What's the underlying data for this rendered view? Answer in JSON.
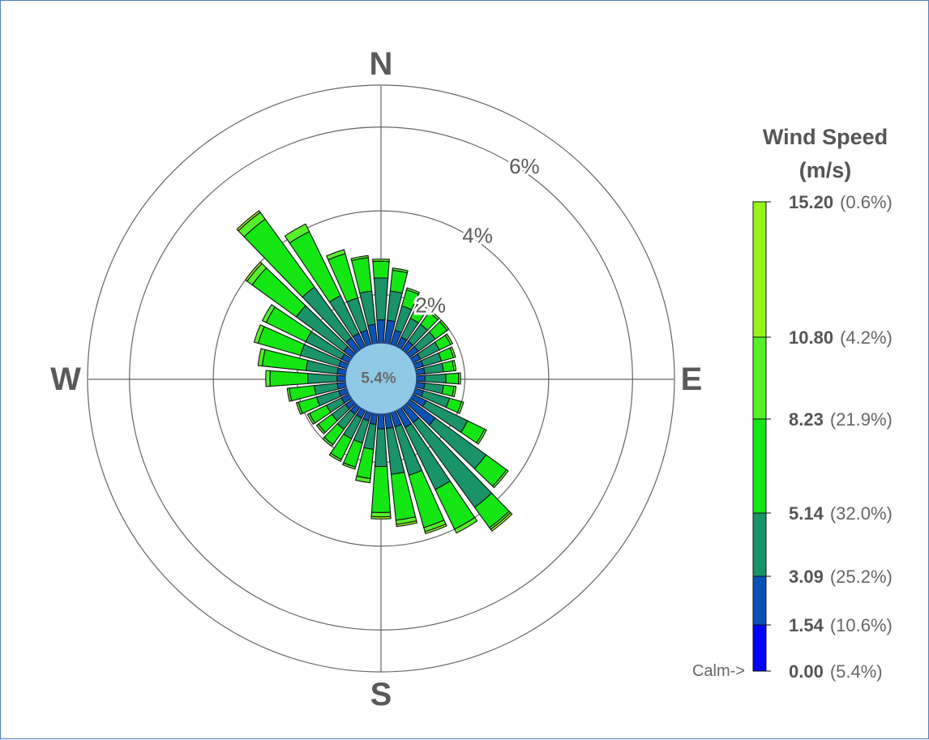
{
  "chart_data": {
    "type": "wind-rose",
    "calm_label": "5.4%",
    "compass": [
      "N",
      "E",
      "S",
      "W"
    ],
    "rings": [
      {
        "value": 2,
        "label": "2%"
      },
      {
        "value": 4,
        "label": "4%"
      },
      {
        "value": 6,
        "label": "6%"
      }
    ],
    "rmax": 7,
    "legend": {
      "title": [
        "Wind Speed",
        "(m/s)"
      ],
      "calm_marker": "Calm->",
      "bins": [
        {
          "value": "0.00",
          "pct": "(5.4%)",
          "color": "#0000ff"
        },
        {
          "value": "1.54",
          "pct": "(10.6%)",
          "color": "#0a52b6"
        },
        {
          "value": "3.09",
          "pct": "(25.2%)",
          "color": "#1a9368"
        },
        {
          "value": "5.14",
          "pct": "(32.0%)",
          "color": "#14e614"
        },
        {
          "value": "8.23",
          "pct": "(21.9%)",
          "color": "#56f02a"
        },
        {
          "value": "10.80",
          "pct": "(4.2%)",
          "color": "#98f31c"
        },
        {
          "value": "15.20",
          "pct": "(0.6%)",
          "color": "#c6f21a"
        }
      ]
    },
    "bin_colors": [
      "#0000ff",
      "#0a52b6",
      "#1a9368",
      "#14e614",
      "#56f02a",
      "#98f31c",
      "#c6f21a"
    ],
    "sectors": [
      {
        "dir": 0,
        "cum": [
          0.7,
          1.4,
          2.4,
          2.8,
          2.85,
          2.85
        ]
      },
      {
        "dir": 10,
        "cum": [
          0.7,
          1.4,
          2.1,
          2.6,
          2.65,
          2.65
        ]
      },
      {
        "dir": 20,
        "cum": [
          0.7,
          1.2,
          1.8,
          2.2,
          2.25,
          2.25
        ]
      },
      {
        "dir": 30,
        "cum": [
          0.7,
          1.1,
          1.6,
          1.95,
          2.0,
          2.0
        ]
      },
      {
        "dir": 40,
        "cum": [
          0.7,
          1.1,
          1.6,
          1.95,
          2.0,
          2.0
        ]
      },
      {
        "dir": 50,
        "cum": [
          0.7,
          1.1,
          1.6,
          1.95,
          2.0,
          2.0
        ]
      },
      {
        "dir": 60,
        "cum": [
          0.7,
          1.05,
          1.55,
          1.85,
          1.9,
          1.9
        ]
      },
      {
        "dir": 70,
        "cum": [
          0.7,
          1.05,
          1.5,
          1.8,
          1.85,
          1.85
        ]
      },
      {
        "dir": 80,
        "cum": [
          0.7,
          1.05,
          1.5,
          1.75,
          1.8,
          1.8
        ]
      },
      {
        "dir": 90,
        "cum": [
          0.7,
          1.05,
          1.55,
          1.85,
          1.9,
          1.9
        ]
      },
      {
        "dir": 100,
        "cum": [
          0.7,
          1.05,
          1.5,
          1.75,
          1.8,
          1.8
        ]
      },
      {
        "dir": 110,
        "cum": [
          0.7,
          1.05,
          1.7,
          2.0,
          2.05,
          2.05
        ]
      },
      {
        "dir": 120,
        "cum": [
          0.7,
          1.2,
          2.3,
          2.75,
          2.8,
          2.8
        ]
      },
      {
        "dir": 130,
        "cum": [
          0.7,
          1.6,
          3.1,
          3.7,
          3.75,
          3.75
        ]
      },
      {
        "dir": 140,
        "cum": [
          0.7,
          1.3,
          3.8,
          4.4,
          4.45,
          4.5
        ]
      },
      {
        "dir": 150,
        "cum": [
          0.7,
          1.3,
          2.95,
          4.0,
          4.1,
          4.1
        ]
      },
      {
        "dir": 160,
        "cum": [
          0.7,
          1.2,
          2.4,
          3.7,
          3.8,
          3.85
        ]
      },
      {
        "dir": 170,
        "cum": [
          0.7,
          1.2,
          2.3,
          3.4,
          3.5,
          3.55
        ]
      },
      {
        "dir": 180,
        "cum": [
          0.7,
          1.2,
          2.1,
          3.2,
          3.3,
          3.35
        ]
      },
      {
        "dir": 190,
        "cum": [
          0.7,
          1.1,
          1.7,
          2.4,
          2.5,
          2.5
        ]
      },
      {
        "dir": 200,
        "cum": [
          0.7,
          1.05,
          1.6,
          2.2,
          2.25,
          2.25
        ]
      },
      {
        "dir": 210,
        "cum": [
          0.7,
          1.05,
          1.6,
          2.15,
          2.2,
          2.2
        ]
      },
      {
        "dir": 220,
        "cum": [
          0.7,
          1.05,
          1.5,
          1.95,
          2.0,
          2.0
        ]
      },
      {
        "dir": 230,
        "cum": [
          0.7,
          1.05,
          1.45,
          1.85,
          1.9,
          1.9
        ]
      },
      {
        "dir": 240,
        "cum": [
          0.7,
          1.05,
          1.45,
          1.9,
          1.95,
          1.95
        ]
      },
      {
        "dir": 250,
        "cum": [
          0.7,
          1.05,
          1.6,
          2.05,
          2.1,
          2.1
        ]
      },
      {
        "dir": 260,
        "cum": [
          0.7,
          1.05,
          1.6,
          2.2,
          2.25,
          2.25
        ]
      },
      {
        "dir": 270,
        "cum": [
          0.7,
          1.05,
          1.75,
          2.65,
          2.75,
          2.75
        ]
      },
      {
        "dir": 280,
        "cum": [
          0.7,
          1.05,
          1.8,
          2.85,
          2.95,
          2.95
        ]
      },
      {
        "dir": 290,
        "cum": [
          0.7,
          1.05,
          2.0,
          3.05,
          3.15,
          3.15
        ]
      },
      {
        "dir": 300,
        "cum": [
          0.7,
          1.05,
          2.0,
          3.05,
          3.15,
          3.15
        ]
      },
      {
        "dir": 310,
        "cum": [
          0.7,
          1.1,
          2.5,
          3.8,
          3.95,
          4.0
        ]
      },
      {
        "dir": 320,
        "cum": [
          0.7,
          1.2,
          2.7,
          4.7,
          4.9,
          4.95
        ]
      },
      {
        "dir": 330,
        "cum": [
          0.7,
          1.2,
          2.2,
          3.9,
          4.1,
          4.1
        ]
      },
      {
        "dir": 340,
        "cum": [
          0.7,
          1.2,
          2.0,
          3.1,
          3.2,
          3.2
        ]
      },
      {
        "dir": 350,
        "cum": [
          0.7,
          1.3,
          2.1,
          2.9,
          2.95,
          2.95
        ]
      }
    ]
  }
}
